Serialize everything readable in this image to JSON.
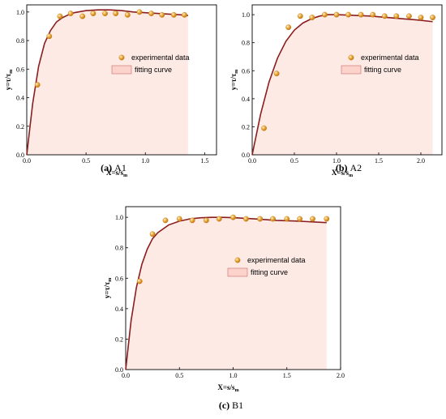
{
  "panels": [
    {
      "id": "A1",
      "caption_prefix": "(a)",
      "caption_name": "A1",
      "chart_data": {
        "type": "scatter",
        "xlabel": "X=s/s",
        "xlabel_sub": "m",
        "ylabel": "y=τ/τ",
        "ylabel_sub": "m",
        "xlim": [
          0,
          1.6
        ],
        "ylim": [
          0,
          1.05
        ],
        "xticks": [
          0,
          0.5,
          1.0,
          1.5
        ],
        "xtick_labels": [
          "0.0",
          "0.5",
          "1.0",
          "1.5"
        ],
        "yticks": [
          0,
          0.2,
          0.4,
          0.6,
          0.8,
          1.0
        ],
        "ytick_labels": [
          "0.0",
          "0.2",
          "0.4",
          "0.6",
          "0.8",
          "1.0"
        ],
        "legend_position": "center-right",
        "series": [
          {
            "name": "experimental data",
            "kind": "points",
            "x": [
              0.09,
              0.19,
              0.28,
              0.37,
              0.47,
              0.56,
              0.66,
              0.75,
              0.85,
              0.95,
              1.05,
              1.14,
              1.24,
              1.33
            ],
            "y": [
              0.49,
              0.83,
              0.97,
              0.99,
              0.97,
              0.99,
              0.99,
              0.99,
              0.98,
              1.0,
              0.99,
              0.98,
              0.98,
              0.98
            ]
          },
          {
            "name": "fitting curve",
            "kind": "line",
            "x": [
              0,
              0.05,
              0.1,
              0.15,
              0.2,
              0.25,
              0.3,
              0.35,
              0.4,
              0.5,
              0.6,
              0.7,
              0.8,
              0.9,
              1.0,
              1.1,
              1.2,
              1.3,
              1.36
            ],
            "y": [
              0,
              0.36,
              0.62,
              0.78,
              0.87,
              0.93,
              0.96,
              0.98,
              0.995,
              1.01,
              1.015,
              1.015,
              1.01,
              1.0,
              0.995,
              0.99,
              0.985,
              0.98,
              0.975
            ]
          }
        ]
      }
    },
    {
      "id": "A2",
      "caption_prefix": "(b)",
      "caption_name": "A2",
      "chart_data": {
        "type": "scatter",
        "xlabel": "X=s/s",
        "xlabel_sub": "m",
        "ylabel": "y=τ/τ",
        "ylabel_sub": "m",
        "xlim": [
          0,
          2.25
        ],
        "ylim": [
          0,
          1.07
        ],
        "xticks": [
          0,
          0.5,
          1.0,
          1.5,
          2.0
        ],
        "xtick_labels": [
          "0.0",
          "0.5",
          "1.0",
          "1.5",
          "2.0"
        ],
        "yticks": [
          0,
          0.2,
          0.4,
          0.6,
          0.8,
          1.0
        ],
        "ytick_labels": [
          "0.0",
          "0.2",
          "0.4",
          "0.6",
          "0.8",
          "1.0"
        ],
        "legend_position": "center-right",
        "series": [
          {
            "name": "experimental data",
            "kind": "points",
            "x": [
              0.14,
              0.29,
              0.43,
              0.57,
              0.71,
              0.86,
              1.0,
              1.14,
              1.29,
              1.43,
              1.57,
              1.71,
              1.86,
              2.0,
              2.14
            ],
            "y": [
              0.19,
              0.58,
              0.91,
              0.99,
              0.98,
              1.0,
              1.0,
              1.0,
              1.0,
              1.0,
              0.99,
              0.99,
              0.99,
              0.98,
              0.98
            ]
          },
          {
            "name": "fitting curve",
            "kind": "line",
            "x": [
              0,
              0.1,
              0.2,
              0.3,
              0.4,
              0.5,
              0.6,
              0.7,
              0.8,
              0.9,
              1.0,
              1.2,
              1.4,
              1.6,
              1.8,
              2.0,
              2.14
            ],
            "y": [
              0,
              0.29,
              0.52,
              0.69,
              0.81,
              0.89,
              0.94,
              0.97,
              0.99,
              1.0,
              1.0,
              0.995,
              0.99,
              0.98,
              0.97,
              0.96,
              0.95
            ]
          }
        ]
      }
    },
    {
      "id": "B1",
      "caption_prefix": "(c)",
      "caption_name": "B1",
      "chart_data": {
        "type": "scatter",
        "xlabel": "X=s/s",
        "xlabel_sub": "m",
        "ylabel": "y=τ/τ",
        "ylabel_sub": "m",
        "xlim": [
          0,
          2.0
        ],
        "ylim": [
          0,
          1.07
        ],
        "xticks": [
          0,
          0.5,
          1.0,
          1.5,
          2.0
        ],
        "xtick_labels": [
          "0.0",
          "0.5",
          "1.0",
          "1.5",
          "2.0"
        ],
        "yticks": [
          0,
          0.2,
          0.4,
          0.6,
          0.8,
          1.0
        ],
        "ytick_labels": [
          "0.0",
          "0.2",
          "0.4",
          "0.6",
          "0.8",
          "1.0"
        ],
        "legend_position": "center-right",
        "series": [
          {
            "name": "experimental data",
            "kind": "points",
            "x": [
              0.13,
              0.25,
              0.37,
              0.5,
              0.62,
              0.75,
              0.87,
              1.0,
              1.12,
              1.25,
              1.37,
              1.5,
              1.62,
              1.74,
              1.87
            ],
            "y": [
              0.58,
              0.89,
              0.98,
              0.99,
              0.98,
              0.98,
              0.99,
              1.0,
              0.99,
              0.99,
              0.99,
              0.99,
              0.99,
              0.99,
              0.99
            ]
          },
          {
            "name": "fitting curve",
            "kind": "line",
            "x": [
              0,
              0.05,
              0.1,
              0.15,
              0.2,
              0.25,
              0.3,
              0.4,
              0.5,
              0.6,
              0.7,
              0.8,
              0.9,
              1.0,
              1.2,
              1.4,
              1.6,
              1.87
            ],
            "y": [
              0,
              0.32,
              0.54,
              0.69,
              0.79,
              0.86,
              0.9,
              0.95,
              0.975,
              0.99,
              0.997,
              1.0,
              1.0,
              0.998,
              0.99,
              0.98,
              0.975,
              0.965
            ]
          }
        ]
      }
    }
  ],
  "colors": {
    "curve": "#8b1e1e",
    "point_fill": "#e8a53a",
    "point_stroke": "#c07a10",
    "shade": "#fde3dc",
    "legend_box_fill": "#fbd3cb",
    "legend_box_stroke": "#c96a6a"
  }
}
